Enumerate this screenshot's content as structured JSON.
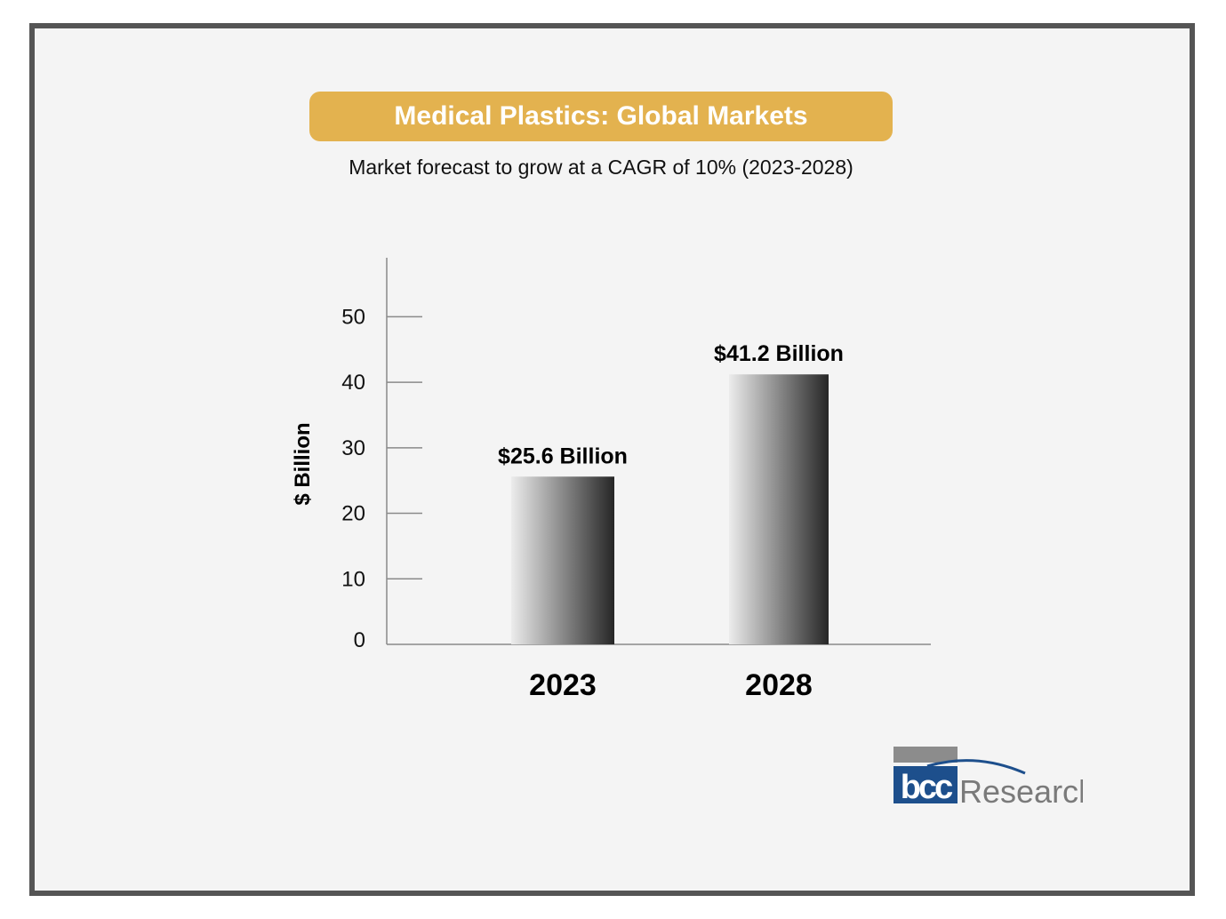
{
  "title": "Medical Plastics: Global Markets",
  "subtitle": "Market forecast to grow at a CAGR of 10% (2023-2028)",
  "colors": {
    "title_bg": "#e3b24f",
    "frame": "#555555",
    "axis": "#8a8a8a",
    "bar_dark": "#262626",
    "bar_light": "#ececec",
    "logo_blue": "#1d4f8c",
    "logo_grey": "#8c8c8c"
  },
  "chart_data": {
    "type": "bar",
    "categories": [
      "2023",
      "2028"
    ],
    "values": [
      25.6,
      41.2
    ],
    "data_labels": [
      "$25.6 Billion",
      "$41.2 Billion"
    ],
    "ylabel": "$ Billion",
    "xlabel": "",
    "ylim": [
      0,
      59
    ],
    "yticks": [
      0,
      10,
      20,
      30,
      40,
      50
    ],
    "grid": false,
    "legend": "none"
  },
  "logo": {
    "brand": "bcc",
    "text": "Research"
  }
}
